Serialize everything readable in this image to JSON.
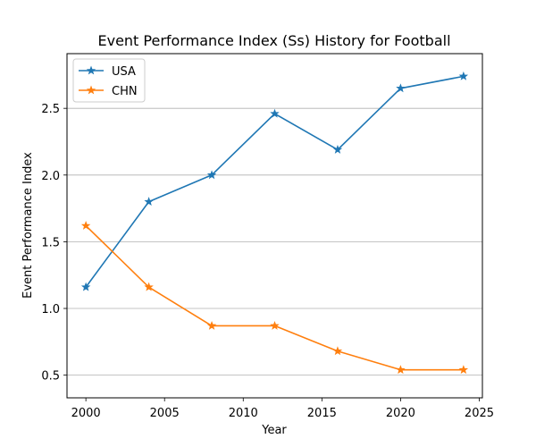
{
  "chart_data": {
    "type": "line",
    "title": "Event Performance Index (Ss) History for Football",
    "xlabel": "Year",
    "ylabel": "Event Performance Index",
    "x": [
      2000,
      2004,
      2008,
      2012,
      2016,
      2020,
      2024
    ],
    "series": [
      {
        "name": "USA",
        "color": "#1f77b4",
        "marker": "star",
        "values": [
          1.16,
          1.8,
          2.0,
          2.46,
          2.19,
          2.65,
          2.74
        ]
      },
      {
        "name": "CHN",
        "color": "#ff7f0e",
        "marker": "star",
        "values": [
          1.62,
          1.16,
          0.87,
          0.87,
          0.68,
          0.54,
          0.54
        ]
      }
    ],
    "xlim": [
      1998.8,
      2025.2
    ],
    "ylim": [
      0.33,
      2.91
    ],
    "xticks": [
      2000,
      2005,
      2010,
      2015,
      2020,
      2025
    ],
    "yticks": [
      0.5,
      1.0,
      1.5,
      2.0,
      2.5
    ],
    "xtick_labels": [
      "2000",
      "2005",
      "2010",
      "2015",
      "2020",
      "2025"
    ],
    "ytick_labels": [
      "0.5",
      "1.0",
      "1.5",
      "2.0",
      "2.5"
    ],
    "grid": "horizontal",
    "legend_position": "upper-left"
  }
}
